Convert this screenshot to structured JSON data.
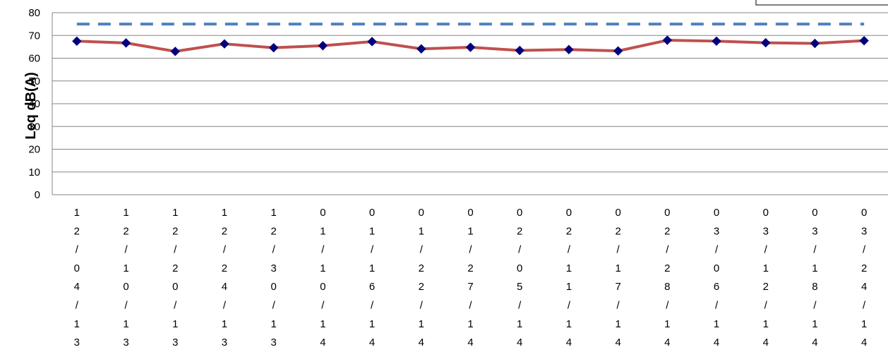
{
  "chart_data": {
    "type": "line",
    "title": "",
    "xlabel": "",
    "ylabel": "Leq dB(A)",
    "ylim": [
      0,
      80
    ],
    "yticks": [
      "0",
      "10",
      "20",
      "30",
      "40",
      "50",
      "60",
      "70",
      "80"
    ],
    "grid": true,
    "categories": [
      "12/04/13",
      "12/10/13",
      "12/20/13",
      "12/24/13",
      "12/30/13",
      "01/10/14",
      "01/16/14",
      "01/22/14",
      "01/27/14",
      "02/05/14",
      "02/11/14",
      "02/17/14",
      "02/28/14",
      "03/06/14",
      "03/12/14",
      "03/18/14",
      "03/24/14"
    ],
    "series": [
      {
        "values": [
          67.5,
          66.7,
          63.0,
          66.3,
          64.6,
          65.5,
          67.3,
          64.1,
          64.8,
          63.4,
          63.8,
          63.2,
          67.9,
          67.5,
          66.8,
          66.5,
          67.7
        ],
        "color": "#c0504d",
        "marker_color": "#00007f",
        "marker": "diamond"
      },
      {
        "values": [
          75,
          75,
          75,
          75,
          75,
          75,
          75,
          75,
          75,
          75,
          75,
          75,
          75,
          75,
          75,
          75,
          75
        ],
        "color": "#4f81bd",
        "style": "dashed"
      }
    ],
    "legend": "top-right"
  }
}
